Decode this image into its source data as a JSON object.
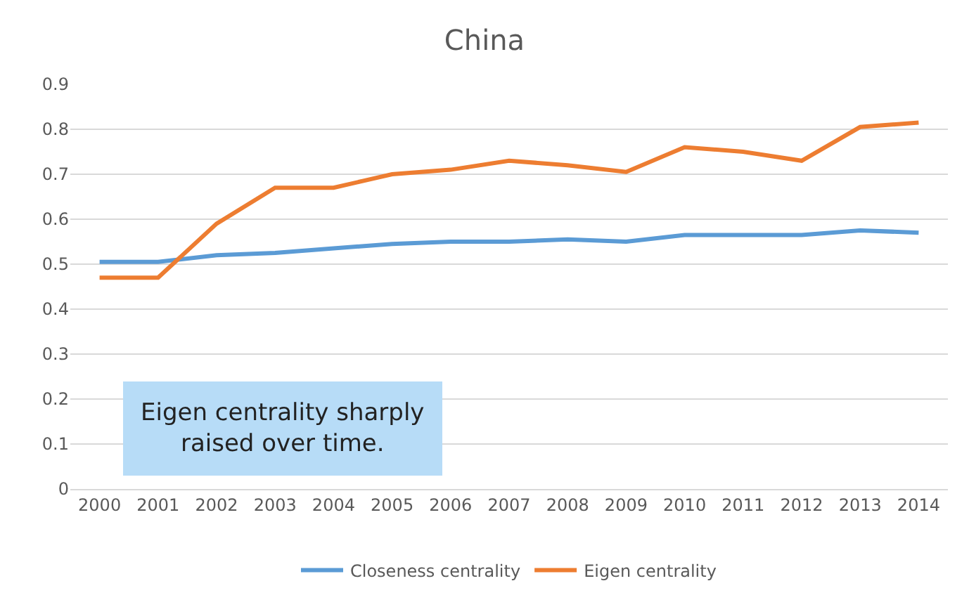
{
  "chart_data": {
    "type": "line",
    "title": "China",
    "categories": [
      "2000",
      "2001",
      "2002",
      "2003",
      "2004",
      "2005",
      "2006",
      "2007",
      "2008",
      "2009",
      "2010",
      "2011",
      "2012",
      "2013",
      "2014"
    ],
    "series": [
      {
        "name": "Closeness centrality",
        "color": "#5b9bd5",
        "values": [
          0.505,
          0.505,
          0.52,
          0.525,
          0.535,
          0.545,
          0.55,
          0.55,
          0.555,
          0.55,
          0.565,
          0.565,
          0.565,
          0.575,
          0.57
        ]
      },
      {
        "name": "Eigen centrality",
        "color": "#ed7d31",
        "values": [
          0.47,
          0.47,
          0.59,
          0.67,
          0.67,
          0.7,
          0.71,
          0.73,
          0.72,
          0.705,
          0.76,
          0.75,
          0.73,
          0.805,
          0.815
        ]
      }
    ],
    "ylim": [
      0,
      0.9
    ],
    "yticks": [
      0,
      0.1,
      0.2,
      0.3,
      0.4,
      0.5,
      0.6,
      0.7,
      0.8,
      0.9
    ],
    "grid": "y",
    "legend": "bottom",
    "marker": "none",
    "line_style": "solid",
    "annotations": [
      "Eigen centrality sharply raised over time."
    ]
  }
}
